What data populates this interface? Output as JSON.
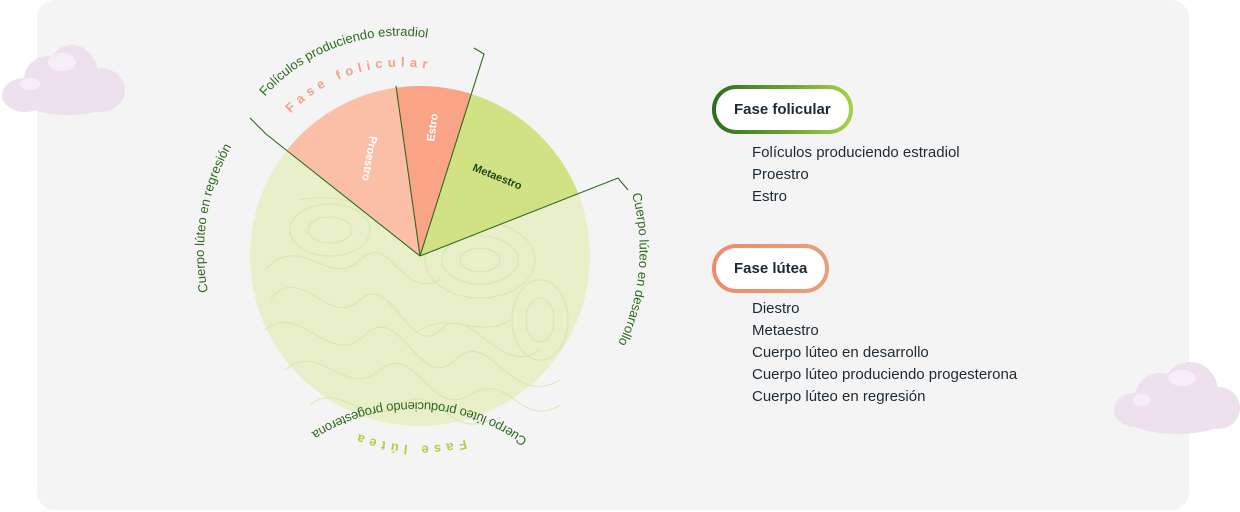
{
  "colors": {
    "card_bg": "#f4f4f4",
    "proestro": "#fbbda6",
    "estro": "#f9a386",
    "metaestro": "#d1e285",
    "lutea_area": "#e7efc6",
    "label_green": "#2d6a1f",
    "fase_folicular_label": "#f4a08a",
    "fase_lutea_label": "#b4cc4c",
    "cloud": "#f1e1ef"
  },
  "diagram": {
    "fase_folicular_title": "Fase folicular",
    "fase_lutea_title": "Fase lútea",
    "segments": {
      "proestro": "Proestro",
      "estro": "Estro",
      "metaestro": "Metaestro"
    },
    "callouts": {
      "foliculos": "Folículos produciendo estradiol",
      "regresion": "Cuerpo lúteo en regresión",
      "desarrollo": "Cuerpo lúteo en desarrollo",
      "progesterona": "Cuerpo lúteo produciendo progesterona"
    }
  },
  "legend": {
    "folicular": {
      "title": "Fase folicular",
      "items": [
        "Folículos produciendo estradiol",
        "Proestro",
        "Estro"
      ]
    },
    "lutea": {
      "title": "Fase lútea",
      "items": [
        "Diestro",
        "Metaestro",
        "Cuerpo lúteo en desarrollo",
        "Cuerpo lúteo produciendo progesterona",
        "Cuerpo lúteo en regresión"
      ]
    }
  }
}
